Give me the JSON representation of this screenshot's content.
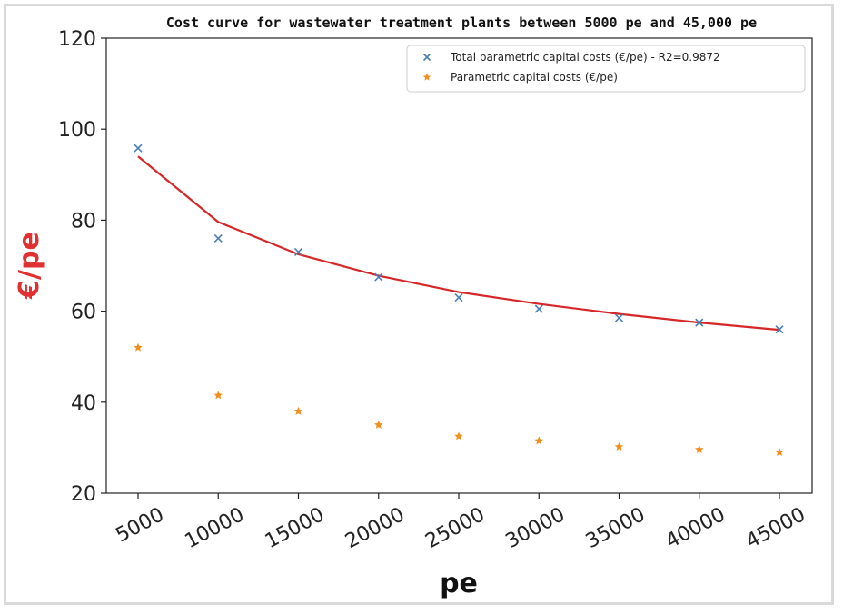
{
  "chart_data": {
    "type": "scatter",
    "title": "Cost curve for wastewater treatment plants between 5000 pe and 45,000 pe",
    "xlabel": "pe",
    "ylabel": "€/pe",
    "x": [
      5000,
      10000,
      15000,
      20000,
      25000,
      30000,
      35000,
      40000,
      45000
    ],
    "xticks": [
      "5000",
      "10000",
      "15000",
      "20000",
      "25000",
      "30000",
      "35000",
      "40000",
      "45000"
    ],
    "ylim": [
      20,
      120
    ],
    "yticks": [
      "20",
      "40",
      "60",
      "80",
      "100",
      "120"
    ],
    "grid": false,
    "legend_position": "top-right",
    "series": [
      {
        "name": "Total parametric capital costs (€/pe) - R2=0.9872",
        "marker": "x",
        "color": "#4a7fb5",
        "values": [
          95.8,
          76.0,
          73.0,
          67.5,
          63.0,
          60.5,
          58.5,
          57.5,
          56.0
        ]
      },
      {
        "name": "Parametric capital costs (€/pe)",
        "marker": "star",
        "color": "#f28e1c",
        "values": [
          52.0,
          41.5,
          38.0,
          35.0,
          32.5,
          31.5,
          30.2,
          29.6,
          29.0
        ]
      }
    ],
    "fit_line": {
      "color": "#d62728",
      "values": [
        94.0,
        79.6,
        72.5,
        67.8,
        64.2,
        61.6,
        59.4,
        57.5,
        55.9
      ]
    },
    "ylabel_color": "#e03030"
  }
}
